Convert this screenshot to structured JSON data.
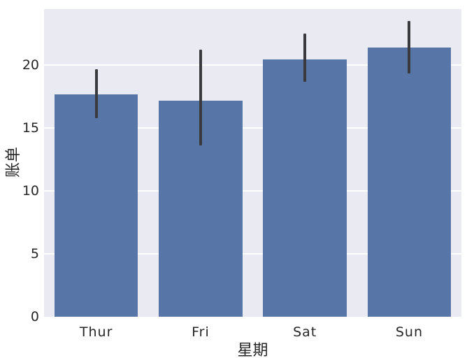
{
  "chart_data": {
    "type": "bar",
    "title": "",
    "xlabel": "星期",
    "ylabel": "账单",
    "categories": [
      "Thur",
      "Fri",
      "Sat",
      "Sun"
    ],
    "values": [
      17.68,
      17.15,
      20.44,
      21.41
    ],
    "error_bars": {
      "low": [
        15.75,
        13.6,
        18.65,
        19.35
      ],
      "high": [
        19.65,
        21.2,
        22.5,
        23.5
      ]
    },
    "yticks": [
      0,
      5,
      10,
      15,
      20
    ],
    "ylim": [
      0,
      24.44
    ],
    "grid": true,
    "legend": false,
    "bar_width_fraction": 0.8,
    "colors": {
      "bar": "#5776A7",
      "error_bar": "#3A3A3E",
      "plot_background": "#EAEAF2",
      "gridline": "#FFFFFF",
      "figure_background": "#FFFFFF",
      "text": "#262626"
    }
  }
}
